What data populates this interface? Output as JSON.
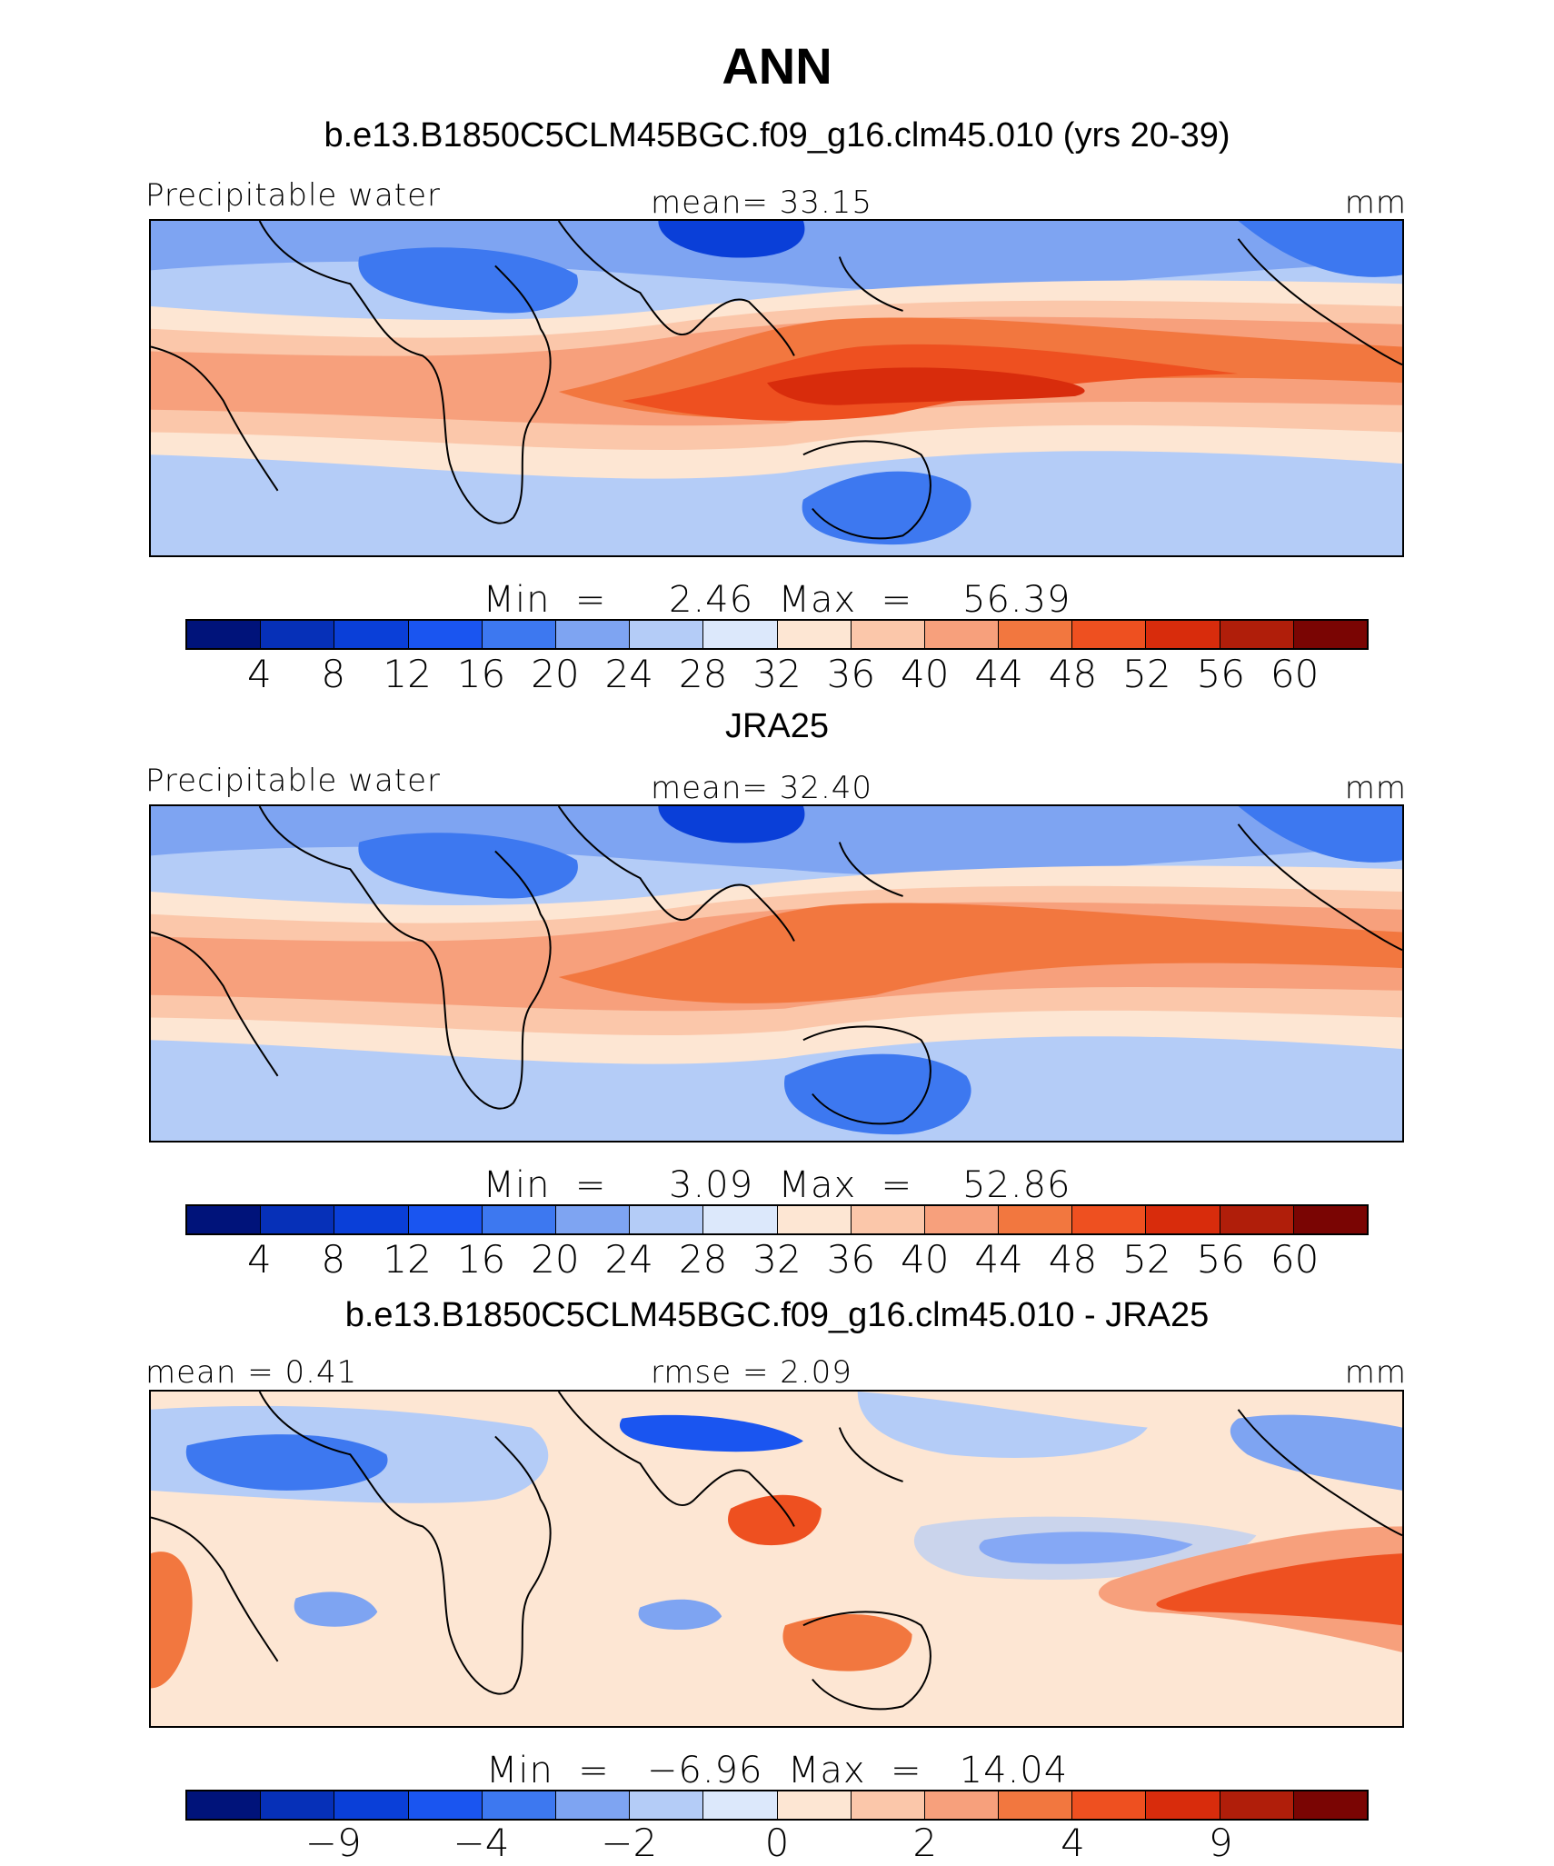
{
  "figure_title": "ANN",
  "colors": {
    "field_scale": [
      "#00137a",
      "#0630b8",
      "#0a3fd8",
      "#1a55f0",
      "#3d78f0",
      "#7ea4f2",
      "#b4ccf7",
      "#dce8fb",
      "#fde6d3",
      "#fbc7aa",
      "#f7a07c",
      "#f2773f",
      "#ee5020",
      "#d82c0c",
      "#b01e0a",
      "#7a0503"
    ],
    "diff_scale": [
      "#00137a",
      "#0630b8",
      "#0a3fd8",
      "#1a55f0",
      "#3d78f0",
      "#7ea4f2",
      "#b4ccf7",
      "#dce8fb",
      "#fde6d3",
      "#fbc7aa",
      "#f7a07c",
      "#f2773f",
      "#ee5020",
      "#d82c0c",
      "#b01e0a",
      "#7a0503"
    ],
    "coast": "#000000"
  },
  "chart_data": [
    {
      "type": "heatmap",
      "title": "b.e13.B1850C5CLM45BGC.f09_g16.clm45.010 (yrs 20-39)",
      "left_label": "Precipitable water",
      "center_label": "mean=   33.15",
      "right_label": "mm",
      "stats_text": "Min  =     2.46  Max  =    56.39",
      "min": 2.46,
      "max": 56.39,
      "mean": 33.15,
      "units": "mm",
      "colorbar_ticks": [
        "4",
        "8",
        "12",
        "16",
        "20",
        "24",
        "28",
        "32",
        "36",
        "40",
        "44",
        "48",
        "52",
        "56",
        "60"
      ],
      "tick_positions": [
        1,
        2,
        3,
        4,
        5,
        6,
        7,
        8,
        9,
        10,
        11,
        12,
        13,
        14,
        15
      ],
      "n_levels": 16
    },
    {
      "type": "heatmap",
      "title": "JRA25",
      "left_label": "Precipitable water",
      "center_label": "mean=   32.40",
      "right_label": "mm",
      "stats_text": "Min  =     3.09  Max  =    52.86",
      "min": 3.09,
      "max": 52.86,
      "mean": 32.4,
      "units": "mm",
      "colorbar_ticks": [
        "4",
        "8",
        "12",
        "16",
        "20",
        "24",
        "28",
        "32",
        "36",
        "40",
        "44",
        "48",
        "52",
        "56",
        "60"
      ],
      "tick_positions": [
        1,
        2,
        3,
        4,
        5,
        6,
        7,
        8,
        9,
        10,
        11,
        12,
        13,
        14,
        15
      ],
      "n_levels": 16
    },
    {
      "type": "heatmap",
      "title": "b.e13.B1850C5CLM45BGC.f09_g16.clm45.010 - JRA25",
      "left_label": "mean =    0.41",
      "center_label": "rmse  =    2.09",
      "right_label": "mm",
      "stats_text": "Min  =   −6.96  Max  =   14.04",
      "min": -6.96,
      "max": 14.04,
      "mean": 0.41,
      "rmse": 2.09,
      "units": "mm",
      "colorbar_ticks": [
        "−9",
        "−4",
        "−2",
        "0",
        "2",
        "4",
        "9"
      ],
      "tick_positions": [
        2,
        4,
        6,
        8,
        10,
        12,
        14
      ],
      "n_levels": 16
    }
  ]
}
